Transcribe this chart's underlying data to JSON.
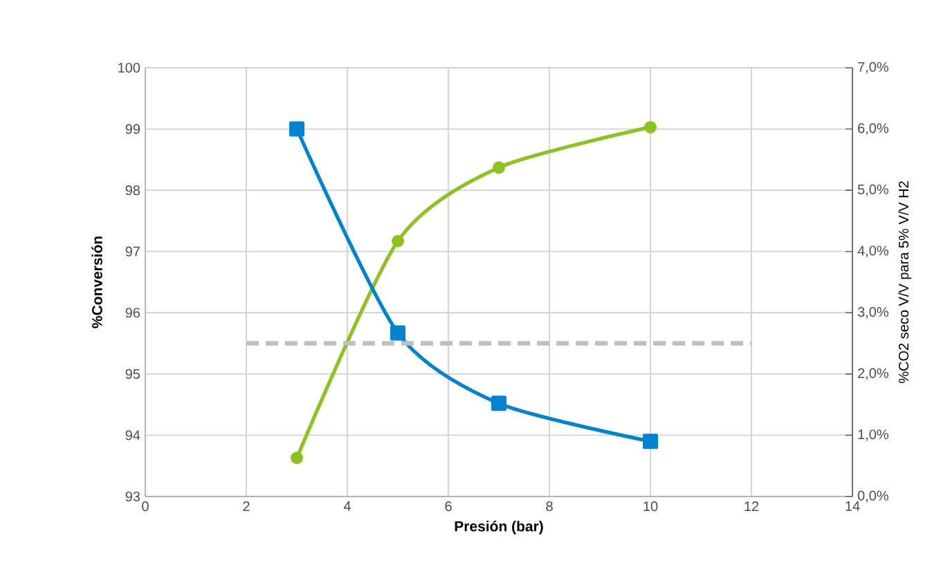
{
  "chart_data": {
    "type": "line",
    "xlabel": "Presión (bar)",
    "ylabel": "%Conversión",
    "y2label": "%CO2 seco V/V para 5% V/V H2",
    "xlim": [
      0,
      14
    ],
    "xticks": [
      0,
      2,
      4,
      6,
      8,
      10,
      12,
      14
    ],
    "ylim": [
      93,
      100
    ],
    "yticks": [
      93,
      94,
      95,
      96,
      97,
      98,
      99,
      100
    ],
    "y2lim": [
      0,
      7
    ],
    "y2ticks": [
      {
        "value": 0,
        "label": "0,0%"
      },
      {
        "value": 1,
        "label": "1,0%"
      },
      {
        "value": 2,
        "label": "2,0%"
      },
      {
        "value": 3,
        "label": "3,0%"
      },
      {
        "value": 4,
        "label": "4,0%"
      },
      {
        "value": 5,
        "label": "5,0%"
      },
      {
        "value": 6,
        "label": "6,0%"
      },
      {
        "value": 7,
        "label": "7,0%"
      }
    ],
    "grid": true,
    "series": [
      {
        "color": "#8dc21f",
        "x": [
          3,
          5,
          7,
          10
        ],
        "values": [
          93.63,
          97.17,
          98.37,
          99.03
        ],
        "marker": "circle",
        "line_style": "solid"
      },
      {
        "color": "#0083d0",
        "x": [
          3,
          5,
          7,
          10
        ],
        "values": [
          6.0,
          2.67,
          1.52,
          0.9
        ],
        "axis": "y2",
        "marker": "square",
        "line_style": "solid"
      },
      {
        "color": "#bfbfbf",
        "x": [
          2,
          12
        ],
        "values": [
          2.5,
          2.5
        ],
        "axis": "y2",
        "marker": "none",
        "line_style": "dashed"
      }
    ]
  }
}
